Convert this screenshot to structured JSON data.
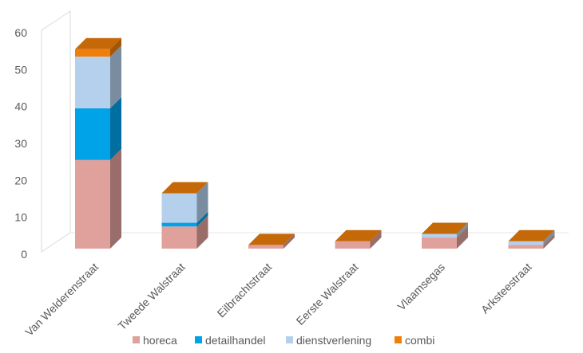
{
  "chart_data": {
    "type": "bar",
    "stacked": true,
    "style": "3d",
    "categories": [
      "Van Welderenstraat",
      "Tweede Walstraat",
      "Eilbrachtstraat",
      "Eerste Walstraat",
      "Vlaamsegas",
      "Arksteestraat"
    ],
    "series": [
      {
        "name": "horeca",
        "color": "#E0A09C",
        "values": [
          24,
          6,
          1,
          2,
          3,
          1
        ]
      },
      {
        "name": "detailhandel",
        "color": "#00A2E8",
        "values": [
          14,
          1,
          0,
          0,
          0,
          0
        ]
      },
      {
        "name": "dienstverlening",
        "color": "#B4D0EC",
        "values": [
          14,
          8,
          0,
          0,
          1,
          1
        ]
      },
      {
        "name": "combi",
        "color": "#F07F09",
        "values": [
          2,
          0,
          0,
          0,
          0,
          0
        ]
      }
    ],
    "yticks": [
      0,
      10,
      20,
      30,
      40,
      50,
      60
    ],
    "ylim": [
      0,
      60
    ],
    "grid": false,
    "legend_position": "bottom"
  }
}
